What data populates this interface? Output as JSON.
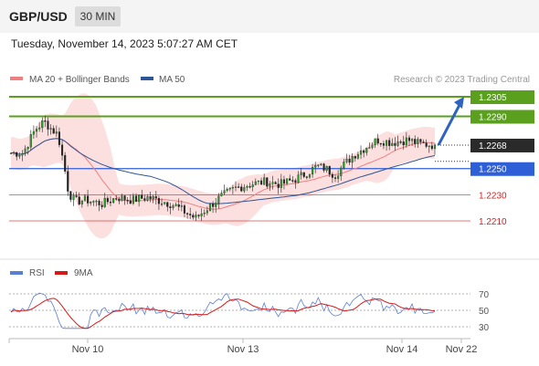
{
  "header": {
    "pair": "GBP/USD",
    "timeframe": "30 MIN"
  },
  "timestamp": "Tuesday, November 14, 2023 5:07:27 AM CET",
  "legend": {
    "ma20": {
      "label": "MA 20 + Bollinger Bands",
      "color": "#f08080"
    },
    "ma50": {
      "label": "MA 50",
      "color": "#2e5597"
    }
  },
  "watermark": "Research © 2023 Trading Central",
  "rsi_legend": {
    "rsi": {
      "label": "RSI",
      "color": "#5a7fd6"
    },
    "ma9": {
      "label": "9MA",
      "color": "#d61a1a"
    }
  },
  "chart_data": {
    "type": "candlestick",
    "price_range": [
      1.2172,
      1.2312
    ],
    "current_price": {
      "value": 1.2268,
      "label": "1.2268"
    },
    "levels": [
      {
        "value": 1.2305,
        "label": "1.2305",
        "color": "#5aa01e",
        "kind": "resistance"
      },
      {
        "value": 1.229,
        "label": "1.2290",
        "color": "#5aa01e",
        "kind": "resistance"
      },
      {
        "value": 1.225,
        "label": "1.2250",
        "color": "#2f5fd6",
        "kind": "pivot"
      },
      {
        "value": 1.223,
        "label": "1.2230",
        "color": "#d62020",
        "kind": "support"
      },
      {
        "value": 1.221,
        "label": "1.2210",
        "color": "#d62020",
        "kind": "support"
      }
    ],
    "x_ticks": [
      "Nov 10",
      "Nov 13",
      "Nov 14",
      "Nov 22"
    ],
    "rsi": {
      "ylim": [
        20,
        80
      ],
      "ticks": [
        70,
        50,
        30
      ]
    }
  }
}
